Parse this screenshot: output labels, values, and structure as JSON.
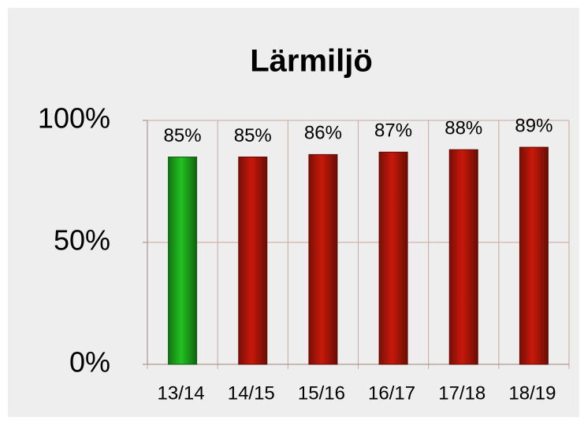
{
  "chart_data": {
    "type": "bar",
    "title": "Lärmiljö",
    "categories": [
      "13/14",
      "14/15",
      "15/16",
      "16/17",
      "17/18",
      "18/19"
    ],
    "values": [
      85,
      85,
      86,
      87,
      88,
      89
    ],
    "value_labels": [
      "85%",
      "85%",
      "86%",
      "87%",
      "88%",
      "89%"
    ],
    "colors": [
      "#1a9a1a",
      "#a01408",
      "#a01408",
      "#a01408",
      "#a01408",
      "#a01408"
    ],
    "ylim": [
      0,
      100
    ],
    "yticks": [
      {
        "value": 0,
        "label": "0%"
      },
      {
        "value": 50,
        "label": "50%"
      },
      {
        "value": 100,
        "label": "100%"
      }
    ],
    "grid": true
  }
}
